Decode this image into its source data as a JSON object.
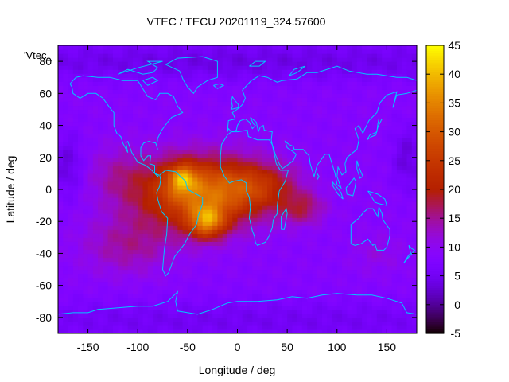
{
  "chart_data": {
    "type": "heatmap",
    "title": "VTEC / TECU 20201119_324.57600",
    "xlabel": "Longitude / deg",
    "ylabel": "Latitude / deg",
    "key_label": "'Vtec_",
    "xlim": [
      -180,
      180
    ],
    "ylim": [
      -90,
      90
    ],
    "x_ticks": [
      -150,
      -100,
      -50,
      0,
      50,
      100,
      150
    ],
    "y_ticks": [
      -80,
      -60,
      -40,
      -20,
      0,
      20,
      40,
      60,
      80
    ],
    "x_tick_labels": [
      "-150",
      "-100",
      "-50",
      "0",
      "50",
      "100",
      "150"
    ],
    "y_tick_labels": [
      "-80",
      "-60",
      "-40",
      "-20",
      "0",
      "20",
      "40",
      "60",
      "80"
    ],
    "colorbar": {
      "range": [
        -5,
        45
      ],
      "ticks": [
        -5,
        0,
        5,
        10,
        15,
        20,
        25,
        30,
        35,
        40,
        45
      ],
      "tick_labels": [
        "-5",
        "0",
        "5",
        "10",
        "15",
        "20",
        "25",
        "30",
        "35",
        "40",
        "45"
      ],
      "palette": "gnuplot rgbformulae 7,5,15 (black-blue-purple-red-orange-yellow)"
    },
    "grid": {
      "lon_step": 5,
      "lat_step": 2.5
    },
    "field_features": [
      {
        "name": "background",
        "vtec": 8.5
      },
      {
        "name": "equatorial_anomaly_main",
        "center_lon": -40,
        "center_lat": -2,
        "peak_vtec": 40
      },
      {
        "name": "southern_crest",
        "center_lon": -30,
        "center_lat": -20,
        "peak_vtec": 43
      },
      {
        "name": "northern_crest",
        "center_lon": -55,
        "center_lat": 7,
        "peak_vtec": 41
      },
      {
        "name": "african_extension",
        "center_lon": 20,
        "center_lat": 2,
        "peak_vtec": 28
      },
      {
        "name": "indian_ocean_extension",
        "center_lon": 65,
        "center_lat": -12,
        "peak_vtec": 24
      },
      {
        "name": "polar_low_north",
        "center_lat": 75,
        "vtec": 4
      },
      {
        "name": "polar_low_south",
        "center_lat": -75,
        "vtec": 5
      }
    ],
    "overlay": "world coastlines (cyan)",
    "coastline_color": "#00c8ff"
  }
}
